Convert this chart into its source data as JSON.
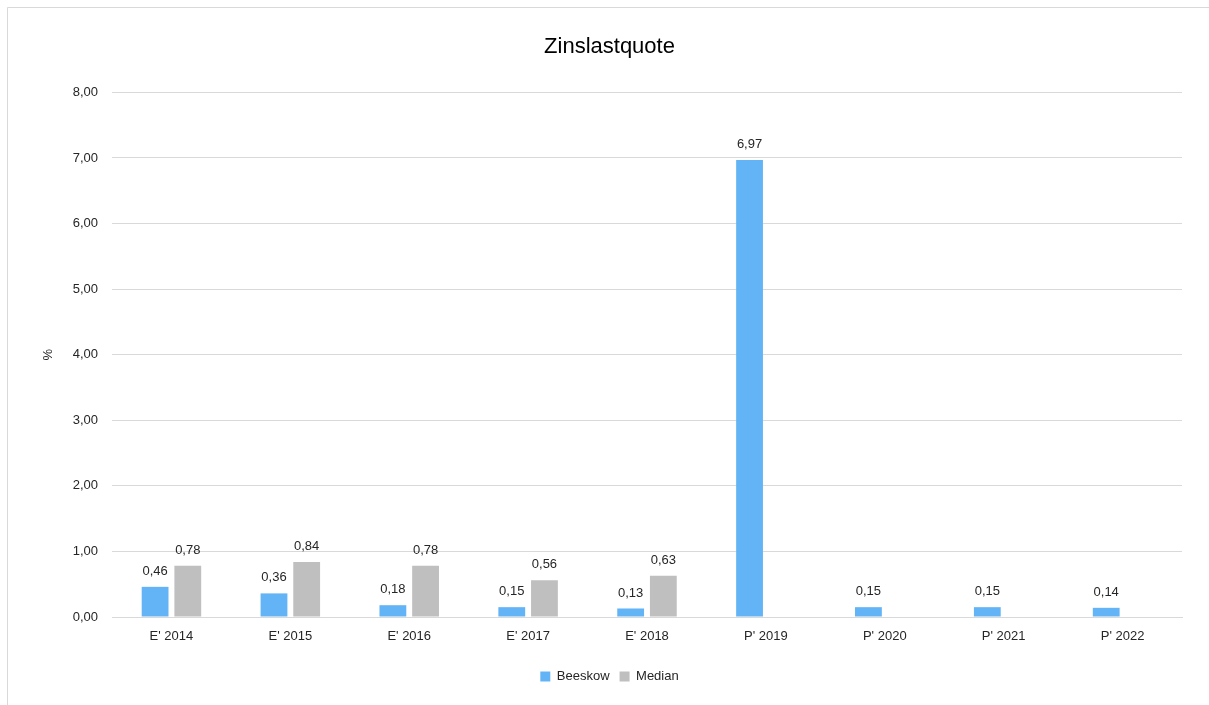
{
  "chart_data": {
    "type": "bar",
    "title": "Zinslastquote",
    "ylabel": "%",
    "categories": [
      "E' 2014",
      "E' 2015",
      "E' 2016",
      "E' 2017",
      "E' 2018",
      "P' 2019",
      "P' 2020",
      "P' 2021",
      "P' 2022"
    ],
    "series": [
      {
        "name": "Beeskow",
        "color": "#63b4f6",
        "values": [
          0.46,
          0.36,
          0.18,
          0.15,
          0.13,
          6.97,
          0.15,
          0.15,
          0.14
        ],
        "value_labels": [
          "0,46",
          "0,36",
          "0,18",
          "0,15",
          "0,13",
          "6,97",
          "0,15",
          "0,15",
          "0,14"
        ]
      },
      {
        "name": "Median",
        "color": "#bfbfbf",
        "values": [
          0.78,
          0.84,
          0.78,
          0.56,
          0.63,
          null,
          null,
          null,
          null
        ],
        "value_labels": [
          "0,78",
          "0,84",
          "0,78",
          "0,56",
          "0,63",
          null,
          null,
          null,
          null
        ]
      }
    ],
    "ylim": [
      0,
      8
    ],
    "yticks": [
      {
        "value": 0,
        "label": "0,00"
      },
      {
        "value": 1,
        "label": "1,00"
      },
      {
        "value": 2,
        "label": "2,00"
      },
      {
        "value": 3,
        "label": "3,00"
      },
      {
        "value": 4,
        "label": "4,00"
      },
      {
        "value": 5,
        "label": "5,00"
      },
      {
        "value": 6,
        "label": "6,00"
      },
      {
        "value": 7,
        "label": "7,00"
      },
      {
        "value": 8,
        "label": "8,00"
      }
    ],
    "grid": true,
    "legend": "bottom"
  }
}
